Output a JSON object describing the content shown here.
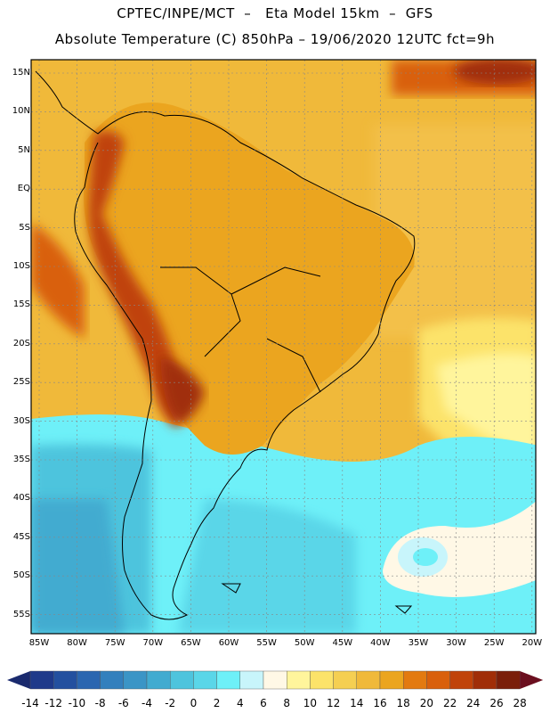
{
  "header": {
    "line1": "CPTEC/INPE/MCT  –   Eta Model 15km  –  GFS",
    "line2": "Absolute Temperature (C) 850hPa – 19/06/2020 12UTC fct=9h"
  },
  "lat_labels": [
    "15N",
    "10N",
    "5N",
    "EQ",
    "5S",
    "10S",
    "15S",
    "20S",
    "25S",
    "30S",
    "35S",
    "40S",
    "45S",
    "50S",
    "55S"
  ],
  "lon_labels": [
    "85W",
    "80W",
    "75W",
    "70W",
    "65W",
    "60W",
    "55W",
    "50W",
    "45W",
    "40W",
    "35W",
    "30W",
    "25W",
    "20W"
  ],
  "colorbar": {
    "labels": [
      "-14",
      "-12",
      "-10",
      "-8",
      "-6",
      "-4",
      "-2",
      "0",
      "2",
      "4",
      "6",
      "8",
      "10",
      "12",
      "14",
      "16",
      "18",
      "20",
      "22",
      "24",
      "26",
      "28"
    ],
    "colors": [
      "#1f3a8a",
      "#23509f",
      "#2b66b0",
      "#3380bd",
      "#3b95c6",
      "#42abd0",
      "#4ec4dd",
      "#5ad6e8",
      "#6ef0f8",
      "#c8f5fb",
      "#fff8e6",
      "#fff59c",
      "#fce36a",
      "#f5cf52",
      "#f0b93a",
      "#eba51f",
      "#e37a10",
      "#d9600c",
      "#c0430a",
      "#a02e08",
      "#7a1f0a"
    ],
    "left_arrow": "#1a2a6e",
    "right_arrow": "#6b0f1f"
  }
}
